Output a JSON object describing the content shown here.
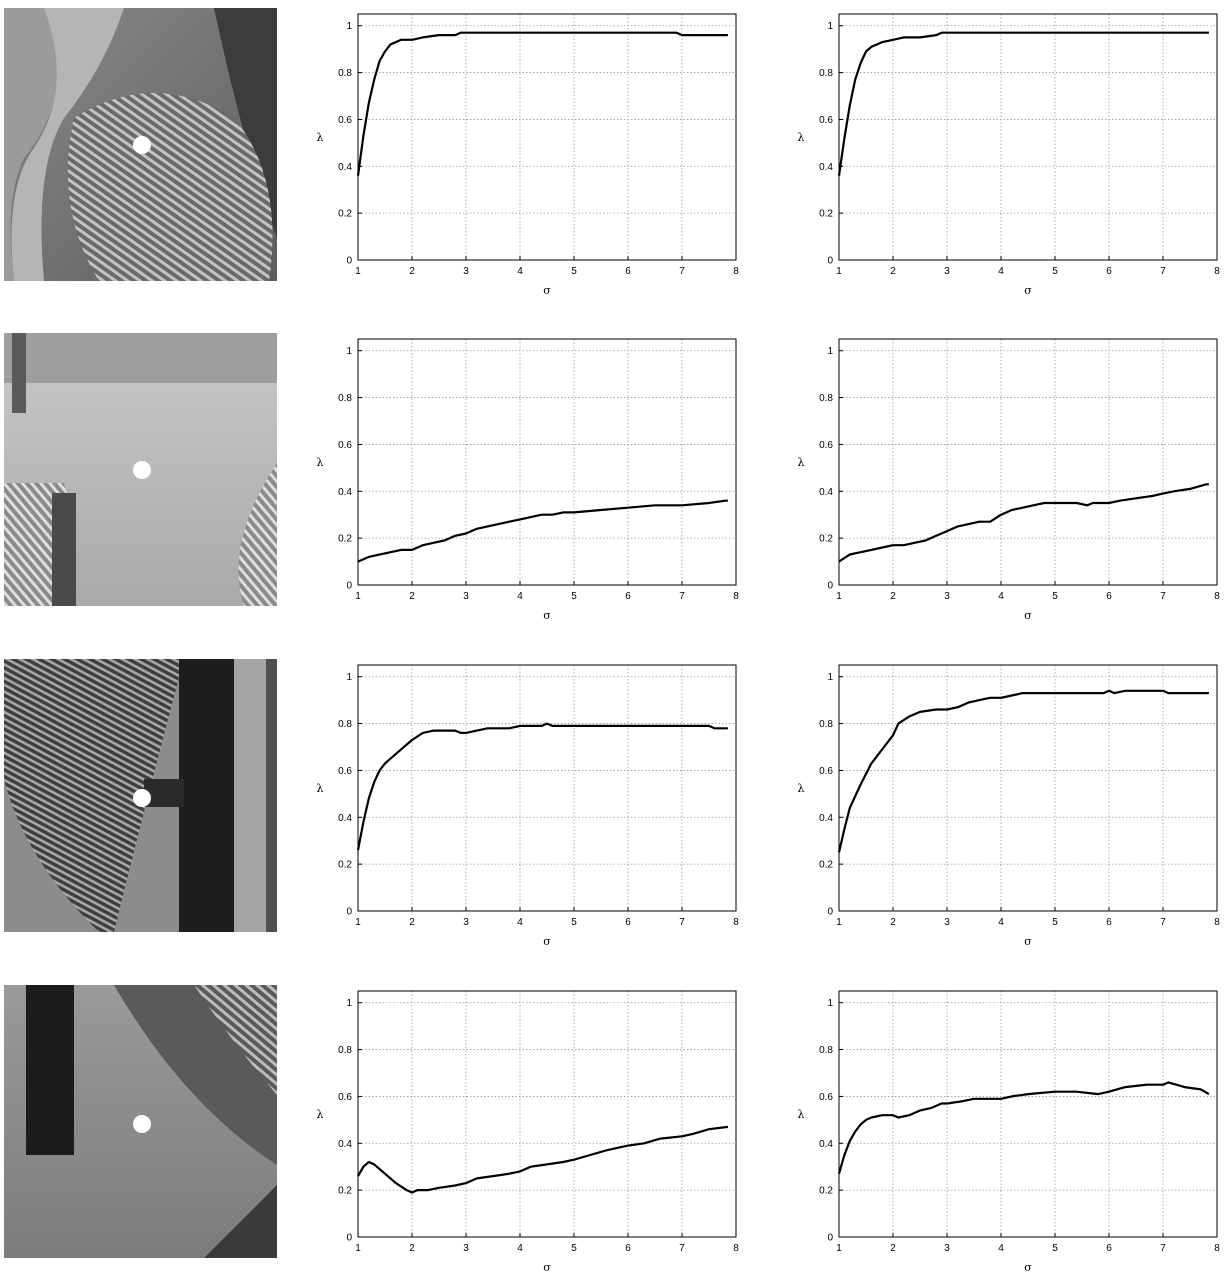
{
  "figure": {
    "rows": 4,
    "thumbnail_marker_color": "#ffffff"
  },
  "chart_data": [
    {
      "type": "line",
      "row": 1,
      "col": 1,
      "xlabel": "σ",
      "ylabel": "λ",
      "xlim": [
        1,
        8
      ],
      "ylim": [
        0,
        1
      ],
      "grid": true,
      "xticks": [
        "1",
        "2",
        "3",
        "4",
        "5",
        "6",
        "7",
        "8"
      ],
      "yticks": [
        "0",
        "0.2",
        "0.4",
        "0.6",
        "0.8",
        "1"
      ],
      "x": [
        1.0,
        1.1,
        1.2,
        1.3,
        1.4,
        1.5,
        1.6,
        1.7,
        1.8,
        2.0,
        2.2,
        2.5,
        2.8,
        2.9,
        3.5,
        4.0,
        5.0,
        6.0,
        6.9,
        7.0,
        7.5,
        7.85
      ],
      "y": [
        0.36,
        0.53,
        0.67,
        0.77,
        0.85,
        0.89,
        0.92,
        0.93,
        0.94,
        0.94,
        0.95,
        0.96,
        0.96,
        0.97,
        0.97,
        0.97,
        0.97,
        0.97,
        0.97,
        0.96,
        0.96,
        0.96
      ]
    },
    {
      "type": "line",
      "row": 1,
      "col": 2,
      "xlabel": "σ",
      "ylabel": "λ",
      "xlim": [
        1,
        8
      ],
      "ylim": [
        0,
        1
      ],
      "grid": true,
      "xticks": [
        "1",
        "2",
        "3",
        "4",
        "5",
        "6",
        "7",
        "8"
      ],
      "yticks": [
        "0",
        "0.2",
        "0.4",
        "0.6",
        "0.8",
        "1"
      ],
      "x": [
        1.0,
        1.1,
        1.2,
        1.3,
        1.4,
        1.5,
        1.6,
        1.7,
        1.8,
        2.0,
        2.2,
        2.5,
        2.8,
        2.9,
        3.5,
        4.0,
        5.0,
        6.0,
        7.0,
        7.85
      ],
      "y": [
        0.36,
        0.52,
        0.66,
        0.77,
        0.84,
        0.89,
        0.91,
        0.92,
        0.93,
        0.94,
        0.95,
        0.95,
        0.96,
        0.97,
        0.97,
        0.97,
        0.97,
        0.97,
        0.97,
        0.97
      ]
    },
    {
      "type": "line",
      "row": 2,
      "col": 1,
      "xlabel": "σ",
      "ylabel": "λ",
      "xlim": [
        1,
        8
      ],
      "ylim": [
        0,
        1
      ],
      "grid": true,
      "xticks": [
        "1",
        "2",
        "3",
        "4",
        "5",
        "6",
        "7",
        "8"
      ],
      "yticks": [
        "0",
        "0.2",
        "0.4",
        "0.6",
        "0.8",
        "1"
      ],
      "x": [
        1.0,
        1.2,
        1.4,
        1.6,
        1.8,
        2.0,
        2.2,
        2.4,
        2.6,
        2.8,
        3.0,
        3.2,
        3.4,
        3.6,
        3.8,
        4.0,
        4.2,
        4.4,
        4.6,
        4.8,
        5.0,
        5.5,
        6.0,
        6.5,
        7.0,
        7.5,
        7.8,
        7.85
      ],
      "y": [
        0.1,
        0.12,
        0.13,
        0.14,
        0.15,
        0.15,
        0.17,
        0.18,
        0.19,
        0.21,
        0.22,
        0.24,
        0.25,
        0.26,
        0.27,
        0.28,
        0.29,
        0.3,
        0.3,
        0.31,
        0.31,
        0.32,
        0.33,
        0.34,
        0.34,
        0.35,
        0.36,
        0.36
      ]
    },
    {
      "type": "line",
      "row": 2,
      "col": 2,
      "xlabel": "σ",
      "ylabel": "λ",
      "xlim": [
        1,
        8
      ],
      "ylim": [
        0,
        1
      ],
      "grid": true,
      "xticks": [
        "1",
        "2",
        "3",
        "4",
        "5",
        "6",
        "7",
        "8"
      ],
      "yticks": [
        "0",
        "0.2",
        "0.4",
        "0.6",
        "0.8",
        "1"
      ],
      "x": [
        1.0,
        1.2,
        1.4,
        1.6,
        1.8,
        2.0,
        2.2,
        2.4,
        2.6,
        2.8,
        3.0,
        3.2,
        3.4,
        3.6,
        3.8,
        4.0,
        4.2,
        4.4,
        4.6,
        4.8,
        5.0,
        5.4,
        5.6,
        5.7,
        6.0,
        6.2,
        6.5,
        6.8,
        7.0,
        7.2,
        7.5,
        7.8,
        7.85
      ],
      "y": [
        0.1,
        0.13,
        0.14,
        0.15,
        0.16,
        0.17,
        0.17,
        0.18,
        0.19,
        0.21,
        0.23,
        0.25,
        0.26,
        0.27,
        0.27,
        0.3,
        0.32,
        0.33,
        0.34,
        0.35,
        0.35,
        0.35,
        0.34,
        0.35,
        0.35,
        0.36,
        0.37,
        0.38,
        0.39,
        0.4,
        0.41,
        0.43,
        0.43
      ]
    },
    {
      "type": "line",
      "row": 3,
      "col": 1,
      "xlabel": "σ",
      "ylabel": "λ",
      "xlim": [
        1,
        8
      ],
      "ylim": [
        0,
        1
      ],
      "grid": true,
      "xticks": [
        "1",
        "2",
        "3",
        "4",
        "5",
        "6",
        "7",
        "8"
      ],
      "yticks": [
        "0",
        "0.2",
        "0.4",
        "0.6",
        "0.8",
        "1"
      ],
      "x": [
        1.0,
        1.1,
        1.2,
        1.3,
        1.4,
        1.5,
        1.6,
        1.8,
        2.0,
        2.2,
        2.4,
        2.6,
        2.8,
        2.9,
        3.0,
        3.2,
        3.4,
        3.6,
        3.8,
        4.0,
        4.4,
        4.5,
        4.6,
        5.0,
        6.0,
        7.0,
        7.5,
        7.6,
        7.85
      ],
      "y": [
        0.26,
        0.38,
        0.48,
        0.55,
        0.6,
        0.63,
        0.65,
        0.69,
        0.73,
        0.76,
        0.77,
        0.77,
        0.77,
        0.76,
        0.76,
        0.77,
        0.78,
        0.78,
        0.78,
        0.79,
        0.79,
        0.8,
        0.79,
        0.79,
        0.79,
        0.79,
        0.79,
        0.78,
        0.78
      ]
    },
    {
      "type": "line",
      "row": 3,
      "col": 2,
      "xlabel": "σ",
      "ylabel": "λ",
      "xlim": [
        1,
        8
      ],
      "ylim": [
        0,
        1
      ],
      "grid": true,
      "xticks": [
        "1",
        "2",
        "3",
        "4",
        "5",
        "6",
        "7",
        "8"
      ],
      "yticks": [
        "0",
        "0.2",
        "0.4",
        "0.6",
        "0.8",
        "1"
      ],
      "x": [
        1.0,
        1.1,
        1.2,
        1.4,
        1.6,
        1.8,
        2.0,
        2.1,
        2.3,
        2.5,
        2.8,
        3.0,
        3.2,
        3.4,
        3.6,
        3.8,
        4.0,
        4.2,
        4.4,
        5.0,
        5.5,
        5.9,
        6.0,
        6.1,
        6.3,
        6.7,
        7.0,
        7.1,
        7.5,
        7.85
      ],
      "y": [
        0.25,
        0.35,
        0.44,
        0.54,
        0.63,
        0.69,
        0.75,
        0.8,
        0.83,
        0.85,
        0.86,
        0.86,
        0.87,
        0.89,
        0.9,
        0.91,
        0.91,
        0.92,
        0.93,
        0.93,
        0.93,
        0.93,
        0.94,
        0.93,
        0.94,
        0.94,
        0.94,
        0.93,
        0.93,
        0.93
      ]
    },
    {
      "type": "line",
      "row": 4,
      "col": 1,
      "xlabel": "σ",
      "ylabel": "λ",
      "xlim": [
        1,
        8
      ],
      "ylim": [
        0,
        1
      ],
      "grid": true,
      "xticks": [
        "1",
        "2",
        "3",
        "4",
        "5",
        "6",
        "7",
        "8"
      ],
      "yticks": [
        "0",
        "0.2",
        "0.4",
        "0.6",
        "0.8",
        "1"
      ],
      "x": [
        1.0,
        1.1,
        1.2,
        1.3,
        1.4,
        1.5,
        1.7,
        1.9,
        2.0,
        2.1,
        2.3,
        2.5,
        2.8,
        3.0,
        3.2,
        3.5,
        3.8,
        4.0,
        4.2,
        4.5,
        4.8,
        5.0,
        5.3,
        5.6,
        6.0,
        6.3,
        6.6,
        7.0,
        7.2,
        7.5,
        7.85
      ],
      "y": [
        0.26,
        0.3,
        0.32,
        0.31,
        0.29,
        0.27,
        0.23,
        0.2,
        0.19,
        0.2,
        0.2,
        0.21,
        0.22,
        0.23,
        0.25,
        0.26,
        0.27,
        0.28,
        0.3,
        0.31,
        0.32,
        0.33,
        0.35,
        0.37,
        0.39,
        0.4,
        0.42,
        0.43,
        0.44,
        0.46,
        0.47
      ]
    },
    {
      "type": "line",
      "row": 4,
      "col": 2,
      "xlabel": "σ",
      "ylabel": "λ",
      "xlim": [
        1,
        8
      ],
      "ylim": [
        0,
        1
      ],
      "grid": true,
      "xticks": [
        "1",
        "2",
        "3",
        "4",
        "5",
        "6",
        "7",
        "8"
      ],
      "yticks": [
        "0",
        "0.2",
        "0.4",
        "0.6",
        "0.8",
        "1"
      ],
      "x": [
        1.0,
        1.1,
        1.2,
        1.3,
        1.4,
        1.5,
        1.6,
        1.8,
        1.9,
        2.0,
        2.1,
        2.3,
        2.5,
        2.7,
        2.9,
        3.0,
        3.3,
        3.5,
        4.0,
        4.2,
        4.5,
        5.0,
        5.4,
        5.8,
        6.0,
        6.3,
        6.7,
        7.0,
        7.1,
        7.4,
        7.7,
        7.85
      ],
      "y": [
        0.27,
        0.35,
        0.41,
        0.45,
        0.48,
        0.5,
        0.51,
        0.52,
        0.52,
        0.52,
        0.51,
        0.52,
        0.54,
        0.55,
        0.57,
        0.57,
        0.58,
        0.59,
        0.59,
        0.6,
        0.61,
        0.62,
        0.62,
        0.61,
        0.62,
        0.64,
        0.65,
        0.65,
        0.66,
        0.64,
        0.63,
        0.61
      ]
    }
  ]
}
